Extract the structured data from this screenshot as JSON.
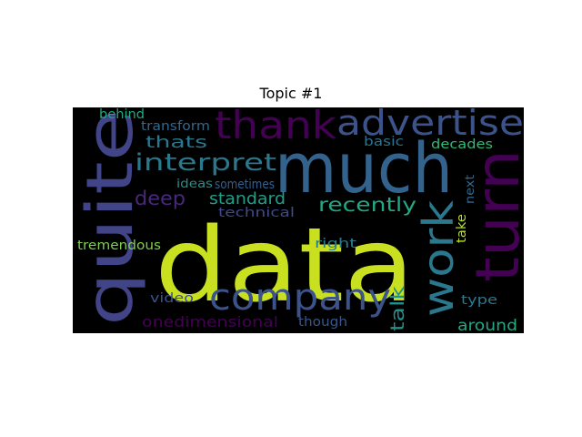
{
  "title": "Topic #1",
  "words": [
    {
      "text": "data",
      "color": "#c8e020"
    },
    {
      "text": "much",
      "color": "#33638d"
    },
    {
      "text": "quite",
      "color": "#414487"
    },
    {
      "text": "turn",
      "color": "#440154"
    },
    {
      "text": "company",
      "color": "#3b528b"
    },
    {
      "text": "work",
      "color": "#2a788e"
    },
    {
      "text": "thank",
      "color": "#440154"
    },
    {
      "text": "advertise",
      "color": "#3b528b"
    },
    {
      "text": "interpret",
      "color": "#2a788e"
    },
    {
      "text": "recently",
      "color": "#22a884"
    },
    {
      "text": "thats",
      "color": "#2a788e"
    },
    {
      "text": "deep",
      "color": "#482878"
    },
    {
      "text": "standard",
      "color": "#1f9e89"
    },
    {
      "text": "talk",
      "color": "#21918c"
    },
    {
      "text": "around",
      "color": "#22a884"
    },
    {
      "text": "onedimensional",
      "color": "#440154"
    },
    {
      "text": "tremendous",
      "color": "#7ad151"
    },
    {
      "text": "behind",
      "color": "#22a884"
    },
    {
      "text": "transform",
      "color": "#31688e"
    },
    {
      "text": "basic",
      "color": "#2c728e"
    },
    {
      "text": "decades",
      "color": "#35b779"
    },
    {
      "text": "next",
      "color": "#31688e"
    },
    {
      "text": "take",
      "color": "#b5de2b"
    },
    {
      "text": "ideas",
      "color": "#21918c"
    },
    {
      "text": "sometimes",
      "color": "#355f8d"
    },
    {
      "text": "technical",
      "color": "#3e4a89"
    },
    {
      "text": "right",
      "color": "#287c8e"
    },
    {
      "text": "type",
      "color": "#2a788e"
    },
    {
      "text": "though",
      "color": "#39568c"
    },
    {
      "text": "video",
      "color": "#3b528b"
    }
  ]
}
